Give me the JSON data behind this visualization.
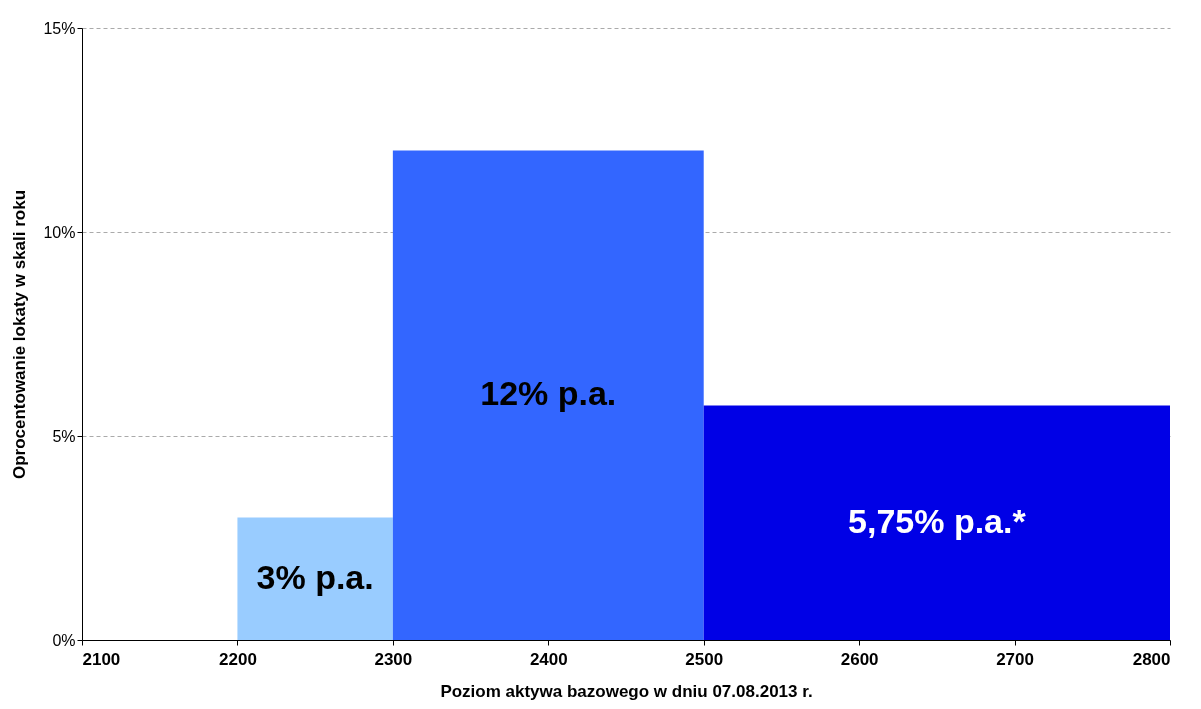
{
  "chart_data": {
    "type": "histogram",
    "xlabel": "Poziom aktywa bazowego w dniu 07.08.2013 r.",
    "ylabel": "Oprocentowanie lokaty w skali roku",
    "bins": [
      2200,
      2300,
      2500,
      2800
    ],
    "values": [
      3,
      12,
      5.75
    ],
    "colors": [
      "#99ccff",
      "#3366ff",
      "#0000e6"
    ],
    "value_labels": [
      "3% p.a.",
      "12%  p.a.",
      "5,75%  p.a.*"
    ],
    "xlim": [
      2100,
      2800
    ],
    "xticks": [
      2100,
      2200,
      2300,
      2400,
      2500,
      2600,
      2700,
      2800
    ],
    "ylim": [
      0,
      15
    ],
    "yticks": [
      {
        "value": 0,
        "label": "0%"
      },
      {
        "value": 5,
        "label": "5%"
      },
      {
        "value": 10,
        "label": "10%"
      },
      {
        "value": 15,
        "label": "15%"
      }
    ],
    "grid": "y"
  }
}
